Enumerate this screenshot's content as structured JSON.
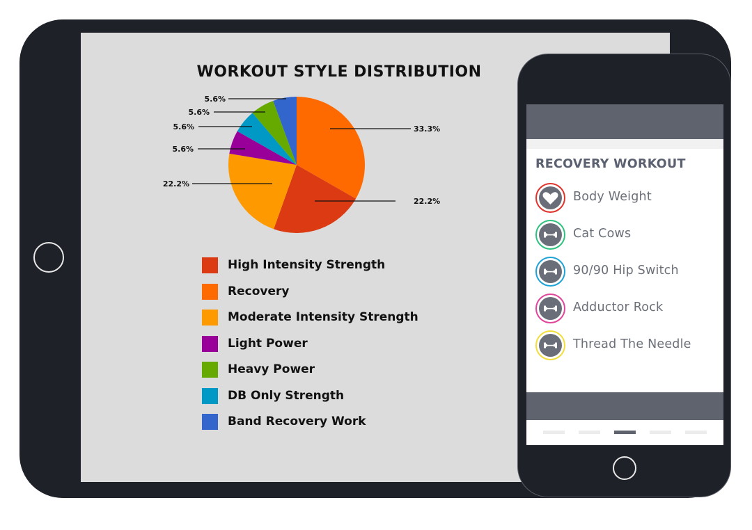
{
  "chart": {
    "title": "WORKOUT STYLE DISTRIBUTION"
  },
  "chart_data": {
    "type": "pie",
    "title": "WORKOUT STYLE DISTRIBUTION",
    "legend_position": "bottom",
    "slices": [
      {
        "label": "Recovery",
        "value": 33.3,
        "display": "33.3%",
        "color": "#ff6a00"
      },
      {
        "label": "High Intensity Strength",
        "value": 22.2,
        "display": "22.2%",
        "color": "#dc3a12"
      },
      {
        "label": "Moderate Intensity Strength",
        "value": 22.2,
        "display": "22.2%",
        "color": "#ff9900"
      },
      {
        "label": "Light Power",
        "value": 5.6,
        "display": "5.6%",
        "color": "#990099"
      },
      {
        "label": "DB Only Strength",
        "value": 5.6,
        "display": "5.6%",
        "color": "#0099c6"
      },
      {
        "label": "Heavy Power",
        "value": 5.6,
        "display": "5.6%",
        "color": "#66aa00"
      },
      {
        "label": "Band Recovery Work",
        "value": 5.6,
        "display": "5.6%",
        "color": "#3366cc"
      }
    ],
    "legend": [
      {
        "label": "High Intensity Strength",
        "color": "#dc3a12"
      },
      {
        "label": "Recovery",
        "color": "#ff6a00"
      },
      {
        "label": "Moderate Intensity Strength",
        "color": "#ff9900"
      },
      {
        "label": "Light Power",
        "color": "#990099"
      },
      {
        "label": "Heavy Power",
        "color": "#66aa00"
      },
      {
        "label": "DB Only Strength",
        "color": "#0099c6"
      },
      {
        "label": "Band Recovery Work",
        "color": "#3366cc"
      }
    ]
  },
  "phone": {
    "section_title": "RECOVERY WORKOUT",
    "exercises": [
      {
        "label": "Body Weight",
        "icon": "heart-icon",
        "ring_color": "#e0342b"
      },
      {
        "label": "Cat Cows",
        "icon": "dumbbell-icon",
        "ring_color": "#2ec27e"
      },
      {
        "label": "90/90 Hip Switch",
        "icon": "dumbbell-icon",
        "ring_color": "#1fa3d6"
      },
      {
        "label": "Adductor Rock",
        "icon": "dumbbell-icon",
        "ring_color": "#e0459a"
      },
      {
        "label": "Thread The Needle",
        "icon": "dumbbell-icon",
        "ring_color": "#f0de3a"
      }
    ],
    "active_tab_index": 2,
    "tab_count": 5
  },
  "colors": {
    "device_frame": "#1f2128",
    "tablet_screen": "#dcdcdc",
    "phone_bar": "#5e636e"
  }
}
